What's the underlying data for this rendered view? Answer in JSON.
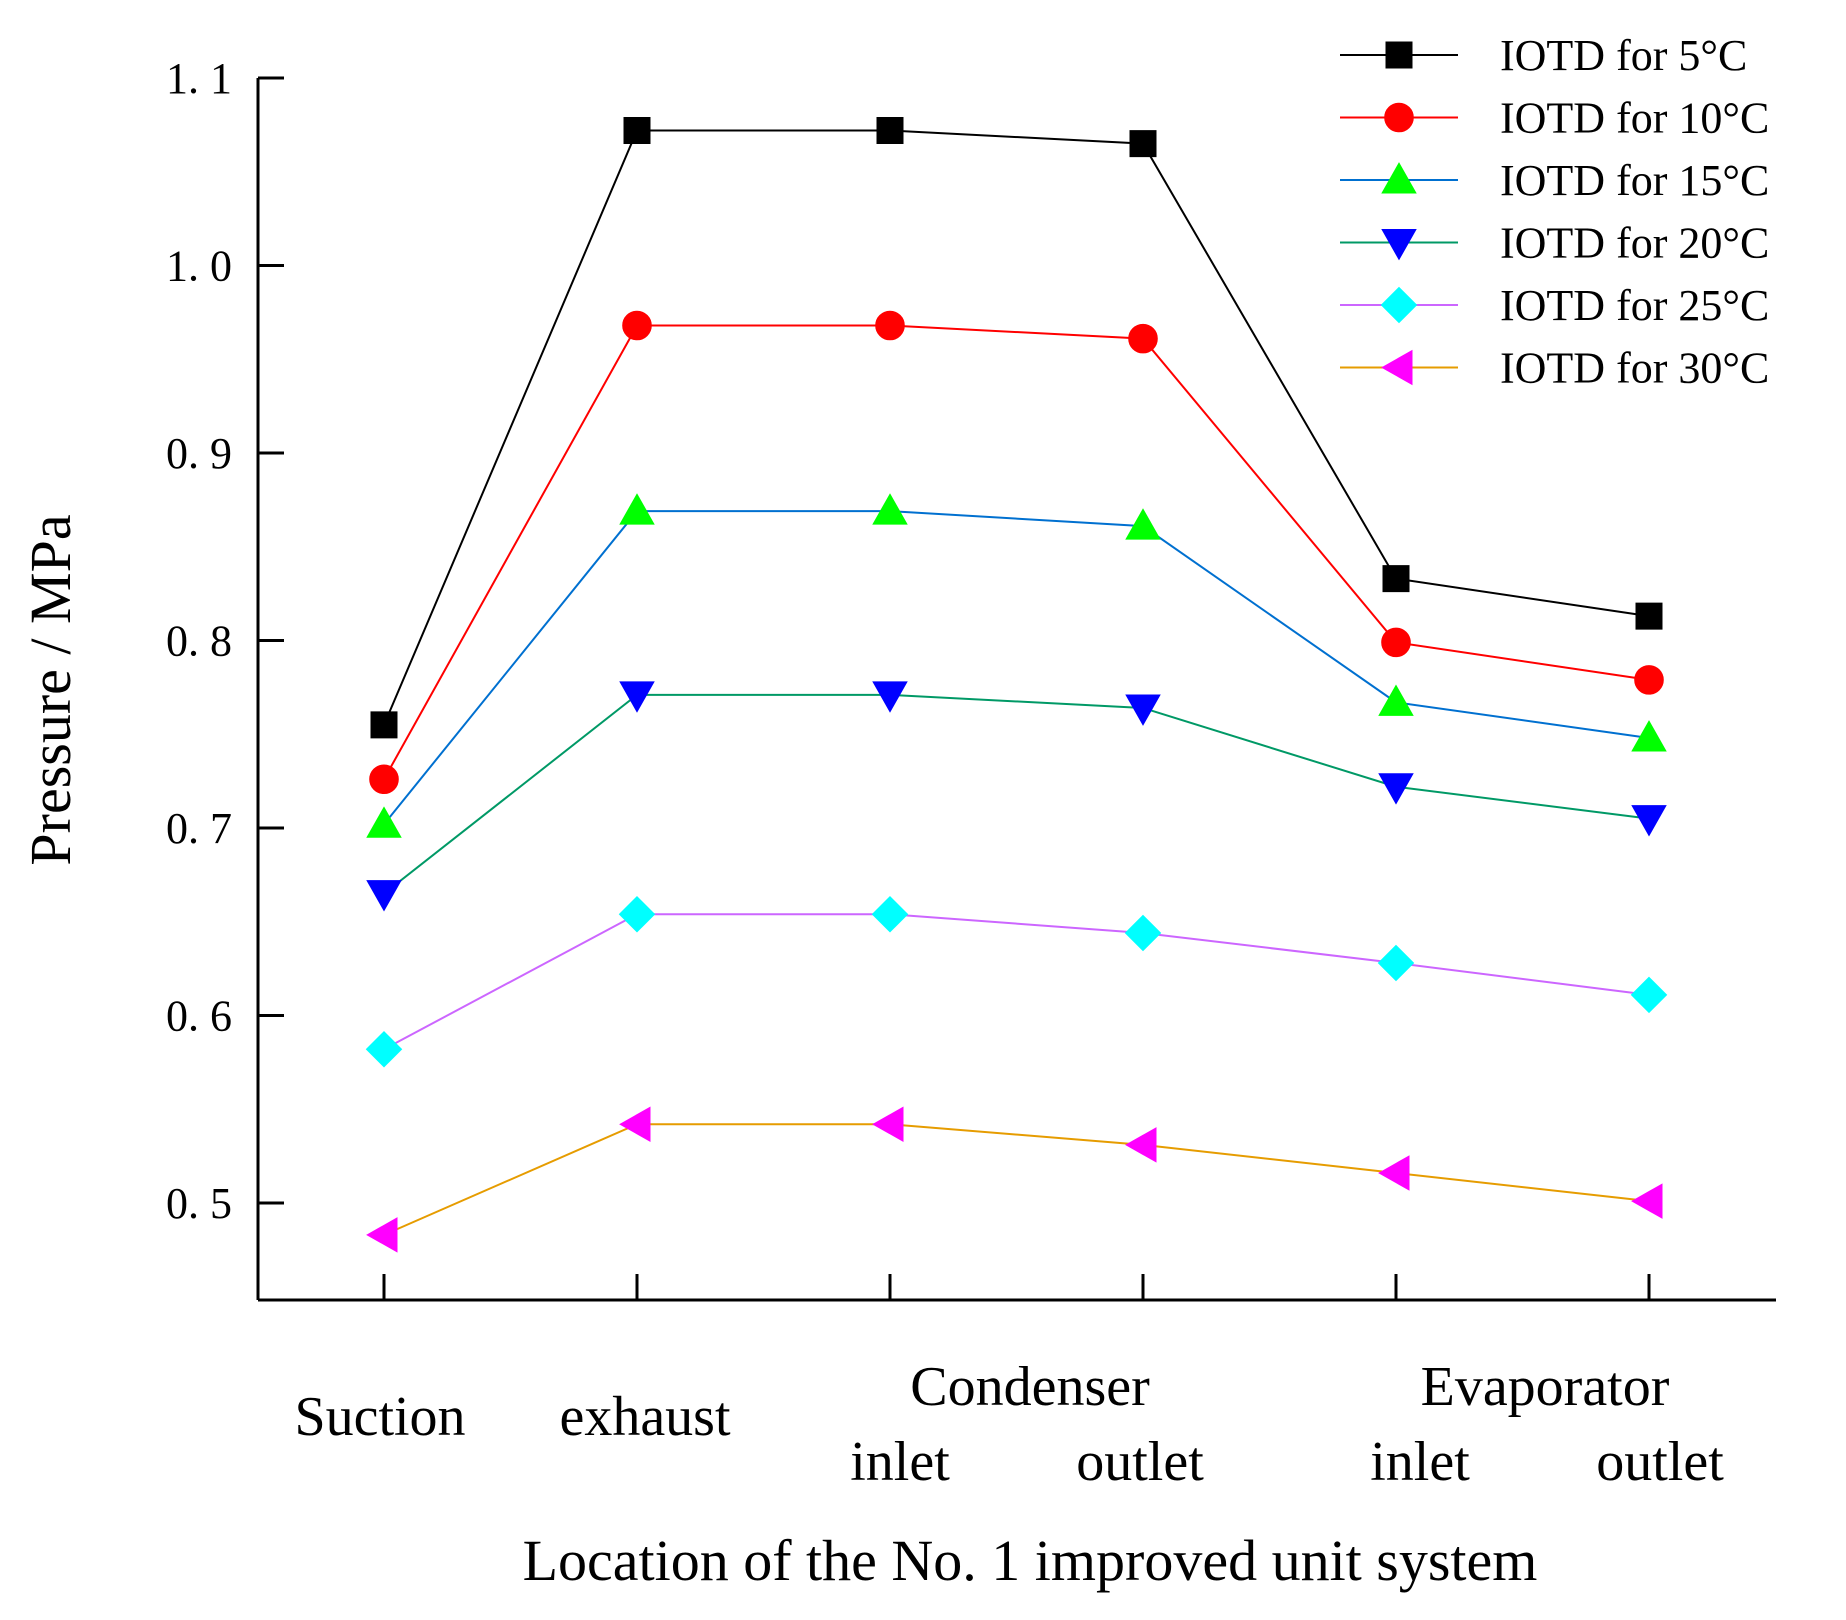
{
  "chart_data": {
    "type": "line",
    "title": "",
    "xlabel": "Location of the No. 1 improved unit system",
    "ylabel": "Pressure / MPa",
    "ylim": [
      0.45,
      1.1
    ],
    "yticks": [
      0.5,
      0.6,
      0.7,
      0.8,
      0.9,
      1.0,
      1.1
    ],
    "ytick_labels": [
      "0. 5",
      "0. 6",
      "0. 7",
      "0. 8",
      "0. 9",
      "1. 0",
      "1. 1"
    ],
    "grid": false,
    "legend_position": "top-right",
    "categories": [
      "Suction",
      "exhaust",
      "Condenser inlet",
      "Condenser outlet",
      "Evaporator inlet",
      "Evaporator outlet"
    ],
    "category_labels": {
      "single": [
        "Suction",
        "exhaust"
      ],
      "groups": [
        {
          "name": "Condenser",
          "sub": [
            "inlet",
            "outlet"
          ]
        },
        {
          "name": "Evaporator",
          "sub": [
            "inlet",
            "outlet"
          ]
        }
      ]
    },
    "series": [
      {
        "name": "IOTD for 5°C",
        "line_color": "#000000",
        "marker_color": "#000000",
        "marker": "square",
        "values": [
          0.755,
          1.072,
          1.072,
          1.065,
          0.833,
          0.813
        ]
      },
      {
        "name": "IOTD for 10°C",
        "line_color": "#ff0000",
        "marker_color": "#ff0000",
        "marker": "circle",
        "values": [
          0.726,
          0.968,
          0.968,
          0.961,
          0.799,
          0.779
        ]
      },
      {
        "name": "IOTD for 15°C",
        "line_color": "#0070d0",
        "marker_color": "#00ff00",
        "marker": "triangle-up",
        "values": [
          0.702,
          0.869,
          0.869,
          0.861,
          0.767,
          0.748
        ]
      },
      {
        "name": "IOTD for 20°C",
        "line_color": "#009966",
        "marker_color": "#0000ff",
        "marker": "triangle-down",
        "values": [
          0.665,
          0.771,
          0.771,
          0.764,
          0.722,
          0.705
        ]
      },
      {
        "name": "IOTD for 25°C",
        "line_color": "#cc66ff",
        "marker_color": "#00ffff",
        "marker": "diamond",
        "values": [
          0.582,
          0.654,
          0.654,
          0.644,
          0.628,
          0.611
        ]
      },
      {
        "name": "IOTD for 30°C",
        "line_color": "#e69c00",
        "marker_color": "#ff00ff",
        "marker": "triangle-left",
        "values": [
          0.483,
          0.542,
          0.542,
          0.531,
          0.516,
          0.501
        ]
      }
    ]
  }
}
